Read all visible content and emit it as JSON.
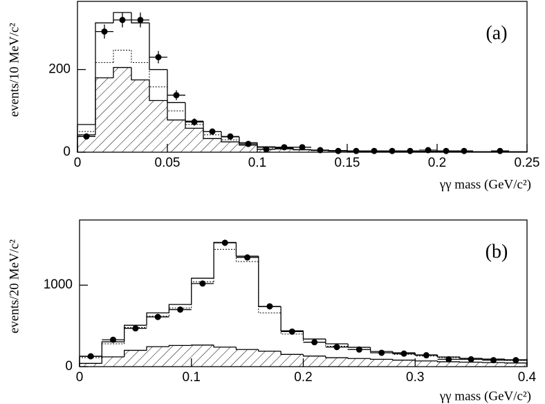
{
  "chart_data": [
    {
      "type": "histogram",
      "annotation": "(a)",
      "ylabel": "events/10 MeV/c²",
      "xlabel": "γγ mass (GeV/c²)",
      "xlim": [
        0,
        0.25
      ],
      "ylim": [
        0,
        365
      ],
      "xticks": [
        0,
        0.05,
        0.1,
        0.15,
        0.2,
        0.25
      ],
      "yticks": [
        0,
        200
      ],
      "bins": [
        0,
        0.01,
        0.02,
        0.03,
        0.04,
        0.05,
        0.06,
        0.07,
        0.08,
        0.09,
        0.1,
        0.11,
        0.12,
        0.13,
        0.14,
        0.15,
        0.16,
        0.17,
        0.18,
        0.19,
        0.2,
        0.21,
        0.22,
        0.23,
        0.24,
        0.25
      ],
      "series": [
        {
          "style": "solid",
          "color": "#000000",
          "values": [
            67,
            313,
            338,
            313,
            200,
            120,
            75,
            50,
            37,
            23,
            13,
            10,
            6,
            5,
            4,
            3,
            3,
            2,
            2,
            2,
            2,
            1,
            1,
            1,
            1
          ]
        },
        {
          "style": "dotted",
          "color": "#000000",
          "values": [
            50,
            217,
            247,
            217,
            158,
            100,
            67,
            42,
            30,
            20,
            13,
            9,
            6,
            4,
            3,
            3,
            2,
            2,
            2,
            1,
            1,
            1,
            1,
            1,
            1
          ]
        },
        {
          "style": "hatched",
          "color": "#000000",
          "values": [
            42,
            180,
            205,
            175,
            125,
            78,
            58,
            33,
            25,
            17,
            12,
            8,
            6,
            4,
            3,
            2,
            2,
            1,
            1,
            1,
            1,
            1,
            1,
            1,
            1
          ]
        }
      ],
      "points": {
        "color": "#000000",
        "x": [
          0.005,
          0.015,
          0.025,
          0.035,
          0.045,
          0.055,
          0.065,
          0.075,
          0.085,
          0.095,
          0.105,
          0.115,
          0.125,
          0.135,
          0.145,
          0.155,
          0.165,
          0.175,
          0.185,
          0.195,
          0.205,
          0.215,
          0.235
        ],
        "values": [
          38,
          292,
          320,
          320,
          230,
          138,
          73,
          50,
          38,
          20,
          7,
          12,
          12,
          5,
          3,
          3,
          3,
          3,
          3,
          5,
          3,
          3,
          3
        ],
        "errors": [
          6,
          17,
          18,
          18,
          15,
          12,
          9,
          7,
          6,
          4,
          3,
          3,
          3,
          2,
          2,
          2,
          2,
          2,
          2,
          2,
          2,
          2,
          2
        ]
      }
    },
    {
      "type": "histogram",
      "annotation": "(b)",
      "ylabel": "events/20 MeV/c²",
      "xlabel": "γγ mass (GeV/c²)",
      "xlim": [
        0,
        0.4
      ],
      "ylim": [
        0,
        1800
      ],
      "xticks": [
        0,
        0.1,
        0.2,
        0.3,
        0.4
      ],
      "yticks": [
        0,
        1000
      ],
      "bins": [
        0,
        0.02,
        0.04,
        0.06,
        0.08,
        0.1,
        0.12,
        0.14,
        0.16,
        0.18,
        0.2,
        0.22,
        0.24,
        0.26,
        0.28,
        0.3,
        0.32,
        0.34,
        0.36,
        0.38,
        0.4
      ],
      "series": [
        {
          "style": "solid",
          "color": "#000000",
          "values": [
            127,
            305,
            508,
            660,
            763,
            1085,
            1525,
            1356,
            737,
            440,
            339,
            280,
            237,
            186,
            170,
            144,
            119,
            102,
            93,
            85
          ]
        },
        {
          "style": "dotted",
          "color": "#000000",
          "values": [
            110,
            280,
            480,
            620,
            720,
            1040,
            1440,
            1290,
            660,
            400,
            300,
            250,
            210,
            170,
            150,
            130,
            110,
            95,
            85,
            75
          ]
        },
        {
          "style": "hatched",
          "color": "#000000",
          "values": [
            40,
            120,
            200,
            245,
            260,
            265,
            240,
            210,
            190,
            150,
            130,
            110,
            100,
            90,
            80,
            70,
            60,
            55,
            50,
            45
          ]
        }
      ],
      "points": {
        "color": "#000000",
        "x": [
          0.01,
          0.03,
          0.05,
          0.07,
          0.09,
          0.11,
          0.13,
          0.15,
          0.17,
          0.19,
          0.21,
          0.23,
          0.25,
          0.27,
          0.29,
          0.31,
          0.33,
          0.35,
          0.37,
          0.39
        ],
        "values": [
          127,
          330,
          470,
          610,
          700,
          1020,
          1520,
          1340,
          740,
          430,
          300,
          240,
          210,
          170,
          160,
          140,
          90,
          90,
          80,
          80
        ],
        "errors": [
          11,
          18,
          22,
          25,
          26,
          32,
          39,
          37,
          27,
          21,
          17,
          15,
          14,
          13,
          13,
          12,
          9,
          9,
          9,
          9
        ]
      }
    }
  ]
}
